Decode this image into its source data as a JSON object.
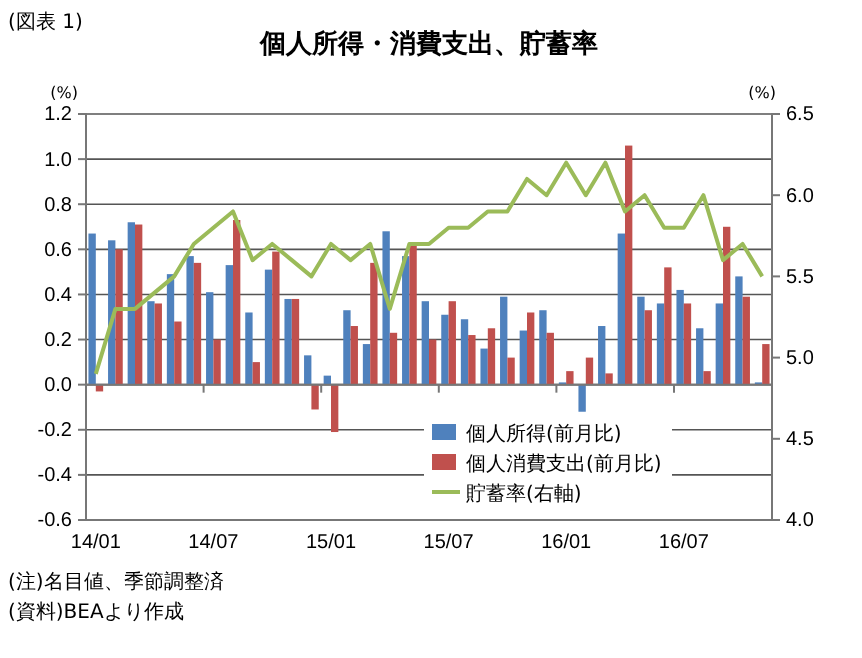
{
  "chart_data": {
    "type": "bar",
    "title": "個人所得・消費支出、貯蓄率",
    "ylabel": "(%)",
    "y2label": "(%)",
    "annotations": [
      "(図表 1)",
      "(注)名目値、季節調整済",
      "(資料)BEAより作成"
    ],
    "categories": [
      "14/01",
      null,
      null,
      null,
      null,
      null,
      "14/07",
      null,
      null,
      null,
      null,
      null,
      "15/01",
      null,
      null,
      null,
      null,
      null,
      "15/07",
      null,
      null,
      null,
      null,
      null,
      "16/01",
      null,
      null,
      null,
      null,
      null,
      "16/07",
      null,
      null,
      null,
      null
    ],
    "series": [
      {
        "name": "個人所得(前月比)",
        "color": "#4f81bd",
        "values": [
          0.67,
          0.64,
          0.72,
          0.37,
          0.49,
          0.57,
          0.41,
          0.53,
          0.32,
          0.51,
          0.38,
          0.13,
          0.04,
          0.33,
          0.18,
          0.68,
          0.57,
          0.37,
          0.31,
          0.29,
          0.16,
          0.39,
          0.24,
          0.33,
          0.01,
          -0.12,
          0.26,
          0.67,
          0.39,
          0.36,
          0.42,
          0.25,
          0.36,
          0.48,
          0.01
        ]
      },
      {
        "name": "個人消費支出(前月比)",
        "color": "#c0504d",
        "values": [
          -0.03,
          0.6,
          0.71,
          0.36,
          0.28,
          0.54,
          0.2,
          0.73,
          0.1,
          0.59,
          0.38,
          -0.11,
          -0.21,
          0.26,
          0.54,
          0.23,
          0.63,
          0.2,
          0.37,
          0.22,
          0.25,
          0.12,
          0.32,
          0.23,
          0.06,
          0.12,
          0.05,
          1.06,
          0.33,
          0.52,
          0.36,
          0.06,
          0.7,
          0.39,
          0.18
        ]
      },
      {
        "name": "貯蓄率(右軸)",
        "type": "line",
        "axis": "y2",
        "color": "#9bbb59",
        "values": [
          4.9,
          5.3,
          5.3,
          5.4,
          5.5,
          5.7,
          5.8,
          5.9,
          5.6,
          5.7,
          5.6,
          5.5,
          5.7,
          5.6,
          5.7,
          5.3,
          5.7,
          5.7,
          5.8,
          5.8,
          5.9,
          5.9,
          6.1,
          6.0,
          6.2,
          6.0,
          6.2,
          5.9,
          6.0,
          5.8,
          5.8,
          6.0,
          5.6,
          5.7,
          5.5
        ]
      }
    ],
    "ylim": [
      -0.6,
      1.2
    ],
    "yticks": [
      {
        "value": -0.6,
        "label": "-0.6"
      },
      {
        "value": -0.4,
        "label": "-0.4"
      },
      {
        "value": -0.2,
        "label": "-0.2"
      },
      {
        "value": 0,
        "label": "0.0"
      },
      0.2,
      0.4,
      0.6,
      0.8,
      {
        "value": 1,
        "label": "1.0"
      },
      1.2
    ],
    "y2lim": [
      4,
      6.5
    ],
    "y2ticks": [
      {
        "value": 4,
        "label": "4.0"
      },
      4.5,
      {
        "value": 5,
        "label": "5.0"
      },
      5.5,
      {
        "value": 6,
        "label": "6.0"
      },
      6.5
    ],
    "grid": "y",
    "legend": "bottom right",
    "marker": "none",
    "line_style": "solid"
  }
}
